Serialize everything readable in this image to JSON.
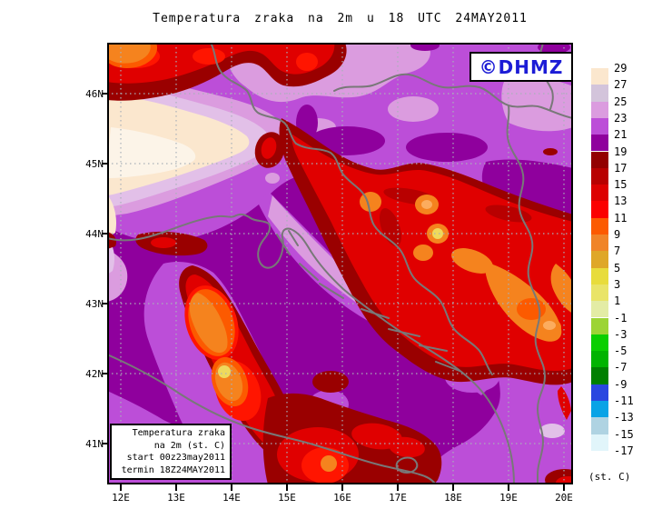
{
  "title": "Temperatura zraka na 2m u 18 UTC 24MAY2011",
  "logo": {
    "text": "©DHMZ",
    "color": "#1C1CD6"
  },
  "legend_box": {
    "lines": [
      "Temperatura zraka",
      "na 2m (st. C)",
      "start 00z23may2011",
      "termin 18Z24MAY2011"
    ]
  },
  "axes": {
    "lat_labels": [
      "46N",
      "45N",
      "44N",
      "43N",
      "42N",
      "41N"
    ],
    "lon_labels": [
      "12E",
      "13E",
      "14E",
      "15E",
      "16E",
      "17E",
      "18E",
      "19E",
      "20E"
    ]
  },
  "colorbar": {
    "unit_label": "(st. C)",
    "values": [
      29,
      27,
      25,
      23,
      21,
      19,
      17,
      15,
      13,
      11,
      9,
      7,
      5,
      3,
      1,
      -1,
      -3,
      -5,
      -7,
      -9,
      -11,
      -13,
      -15,
      -17
    ],
    "colors": [
      "#FBE7CE",
      "#D3C4DB",
      "#DB9CDF",
      "#BC4ED8",
      "#8F009D",
      "#930000",
      "#B80000",
      "#DD0000",
      "#FB0000",
      "#FC5A00",
      "#F08428",
      "#DFA728",
      "#E8DC3C",
      "#E9E468",
      "#E3ECA5",
      "#9CD435",
      "#0ACF00",
      "#00B400",
      "#008000",
      "#2A47E0",
      "#09A3E6",
      "#AFD3E2",
      "#E1F5FA",
      "#FFFFFF"
    ]
  },
  "map_colors": {
    "base_sea": "#8F009D",
    "orchid": "#BC4ED8",
    "plum": "#DB9CDF",
    "pale": "#E2C0E8",
    "cream": "#FBE7CE",
    "white_core": "#FCF4E8",
    "maroon": "#9A0000",
    "darkred": "#B80000",
    "red": "#E00000",
    "bright": "#FF1500",
    "orangered": "#FC5A00",
    "orange": "#F5831E",
    "peach": "#FCAC5E",
    "yellow_spot": "#EED95C",
    "coastline": "#787878",
    "gridline": "#A9B1B9"
  }
}
